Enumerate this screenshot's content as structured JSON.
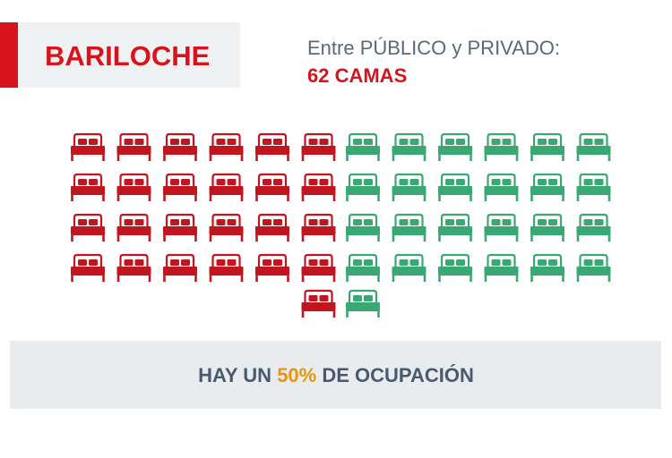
{
  "chart_data": {
    "type": "pictogram",
    "title": "BARILOCHE",
    "subtitle": "Entre PÚBLICO y PRIVADO:",
    "total_label": "62 CAMAS",
    "series": [
      {
        "color": "#c1161f",
        "value": 25
      },
      {
        "color": "#3aa872",
        "value": 25
      }
    ],
    "footer": {
      "prefix": "HAY UN",
      "highlight": "50%",
      "suffix": "DE OCUPACIÓN",
      "highlight_color": "#e8960c"
    }
  }
}
